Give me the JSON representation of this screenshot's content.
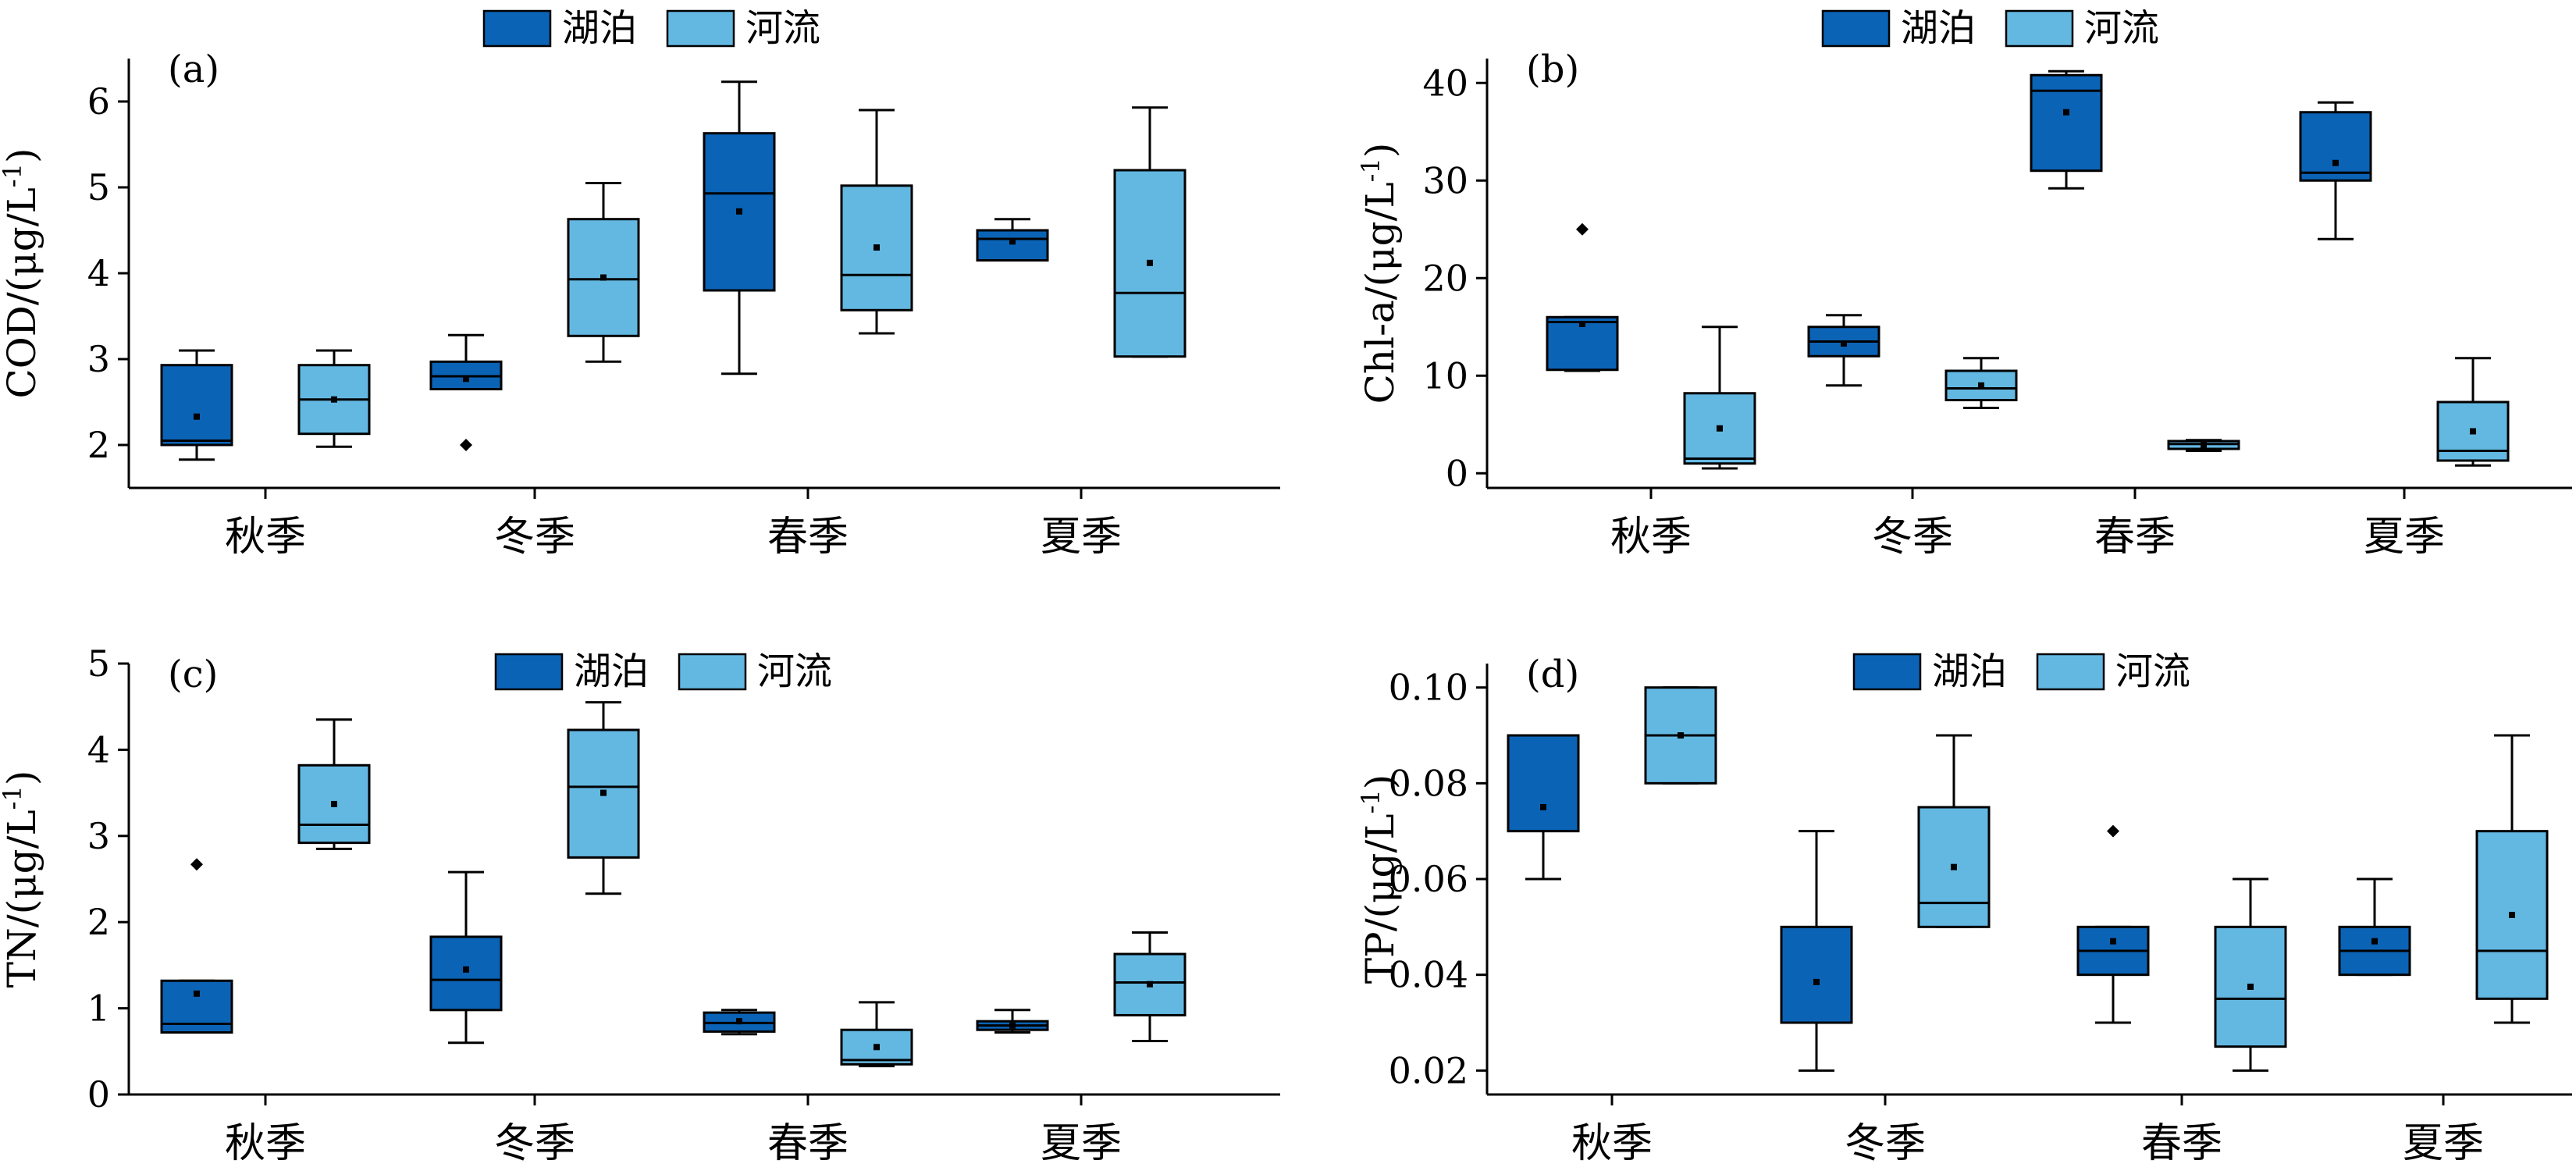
{
  "colors": {
    "lake": "#0b63b6",
    "river": "#63b8e2",
    "stroke": "#000000"
  },
  "chart_data": [
    {
      "type": "box",
      "panel_label": "(a)",
      "ylabel": "COD/(μg/L-1)",
      "ylabel_main": "COD/(μg/L",
      "ylabel_sup": "-1",
      "ylabel_end": ")",
      "categories": [
        "秋季",
        "冬季",
        "春季",
        "夏季"
      ],
      "ylim": [
        1.5,
        6.5
      ],
      "yticks": [
        2,
        3,
        4,
        5,
        6
      ],
      "legend": [
        "湖泊",
        "河流"
      ],
      "series": [
        {
          "name": "湖泊",
          "boxes": [
            {
              "min": 1.83,
              "q1": 2.0,
              "median": 2.05,
              "q3": 2.93,
              "max": 3.1,
              "mean": 2.33,
              "outliers": []
            },
            {
              "min": 2.65,
              "q1": 2.65,
              "median": 2.8,
              "q3": 2.97,
              "max": 3.28,
              "mean": 2.77,
              "outliers": [
                2.0
              ]
            },
            {
              "min": 2.83,
              "q1": 3.8,
              "median": 4.93,
              "q3": 5.63,
              "max": 6.23,
              "mean": 4.72,
              "outliers": []
            },
            {
              "min": 4.15,
              "q1": 4.15,
              "median": 4.4,
              "q3": 4.5,
              "max": 4.63,
              "mean": 4.37,
              "outliers": []
            }
          ]
        },
        {
          "name": "河流",
          "boxes": [
            {
              "min": 1.98,
              "q1": 2.13,
              "median": 2.53,
              "q3": 2.93,
              "max": 3.1,
              "mean": 2.53,
              "outliers": []
            },
            {
              "min": 2.97,
              "q1": 3.27,
              "median": 3.93,
              "q3": 4.63,
              "max": 5.05,
              "mean": 3.95,
              "outliers": []
            },
            {
              "min": 3.3,
              "q1": 3.57,
              "median": 3.98,
              "q3": 5.02,
              "max": 5.9,
              "mean": 4.3,
              "outliers": []
            },
            {
              "min": 3.03,
              "q1": 3.03,
              "median": 3.77,
              "q3": 5.2,
              "max": 5.93,
              "mean": 4.12,
              "outliers": []
            }
          ]
        }
      ]
    },
    {
      "type": "box",
      "panel_label": "(b)",
      "ylabel": "Chl-a/(μg/L-1)",
      "ylabel_main": "Chl-a/(μg/L",
      "ylabel_sup": "-1",
      "ylabel_end": ")",
      "categories": [
        "秋季",
        "冬季",
        "春季",
        "夏季"
      ],
      "ylim": [
        -1.5,
        42.5
      ],
      "yticks": [
        0,
        10,
        20,
        30,
        40
      ],
      "legend": [
        "湖泊",
        "河流"
      ],
      "series": [
        {
          "name": "湖泊",
          "boxes": [
            {
              "min": 10.5,
              "q1": 10.6,
              "median": 15.5,
              "q3": 16.0,
              "max": 16.0,
              "mean": 15.3,
              "outliers": [
                25.0
              ]
            },
            {
              "min": 9.0,
              "q1": 12.0,
              "median": 13.5,
              "q3": 15.0,
              "max": 16.2,
              "mean": 13.3,
              "outliers": []
            },
            {
              "min": 29.2,
              "q1": 31.0,
              "median": 39.2,
              "q3": 40.8,
              "max": 41.2,
              "mean": 37.0,
              "outliers": []
            },
            {
              "min": 24.0,
              "q1": 30.0,
              "median": 30.8,
              "q3": 37.0,
              "max": 38.0,
              "mean": 31.8,
              "outliers": []
            }
          ]
        },
        {
          "name": "河流",
          "boxes": [
            {
              "min": 0.5,
              "q1": 1.0,
              "median": 1.5,
              "q3": 8.2,
              "max": 15.0,
              "mean": 4.6,
              "outliers": []
            },
            {
              "min": 6.7,
              "q1": 7.5,
              "median": 8.7,
              "q3": 10.5,
              "max": 11.8,
              "mean": 9.0,
              "outliers": []
            },
            {
              "min": 2.3,
              "q1": 2.5,
              "median": 3.0,
              "q3": 3.3,
              "max": 3.4,
              "mean": 2.9,
              "outliers": []
            },
            {
              "min": 0.8,
              "q1": 1.3,
              "median": 2.3,
              "q3": 7.3,
              "max": 11.8,
              "mean": 4.3,
              "outliers": []
            }
          ]
        }
      ]
    },
    {
      "type": "box",
      "panel_label": "(c)",
      "ylabel": "TN/(μg/L-1)",
      "ylabel_main": "TN/(μg/L",
      "ylabel_sup": "-1",
      "ylabel_end": ")",
      "categories": [
        "秋季",
        "冬季",
        "春季",
        "夏季"
      ],
      "ylim": [
        0,
        5
      ],
      "yticks": [
        0,
        1,
        2,
        3,
        4,
        5
      ],
      "legend": [
        "湖泊",
        "河流"
      ],
      "series": [
        {
          "name": "湖泊",
          "boxes": [
            {
              "min": 0.72,
              "q1": 0.72,
              "median": 0.82,
              "q3": 1.32,
              "max": 1.32,
              "mean": 1.17,
              "outliers": [
                2.67
              ]
            },
            {
              "min": 0.6,
              "q1": 0.98,
              "median": 1.33,
              "q3": 1.83,
              "max": 2.58,
              "mean": 1.45,
              "outliers": []
            },
            {
              "min": 0.7,
              "q1": 0.73,
              "median": 0.83,
              "q3": 0.95,
              "max": 0.98,
              "mean": 0.85,
              "outliers": []
            },
            {
              "min": 0.72,
              "q1": 0.75,
              "median": 0.8,
              "q3": 0.85,
              "max": 0.98,
              "mean": 0.8,
              "outliers": []
            }
          ]
        },
        {
          "name": "河流",
          "boxes": [
            {
              "min": 2.85,
              "q1": 2.92,
              "median": 3.13,
              "q3": 3.82,
              "max": 4.35,
              "mean": 3.37,
              "outliers": []
            },
            {
              "min": 2.33,
              "q1": 2.75,
              "median": 3.57,
              "q3": 4.23,
              "max": 4.55,
              "mean": 3.5,
              "outliers": []
            },
            {
              "min": 0.33,
              "q1": 0.35,
              "median": 0.4,
              "q3": 0.75,
              "max": 1.07,
              "mean": 0.55,
              "outliers": []
            },
            {
              "min": 0.62,
              "q1": 0.92,
              "median": 1.3,
              "q3": 1.63,
              "max": 1.88,
              "mean": 1.28,
              "outliers": []
            }
          ]
        }
      ]
    },
    {
      "type": "box",
      "panel_label": "(d)",
      "ylabel": "TP/(μg/L-1)",
      "ylabel_main": "TP/(μg/L",
      "ylabel_sup": "-1",
      "ylabel_end": ")",
      "categories": [
        "秋季",
        "冬季",
        "春季",
        "夏季"
      ],
      "ylim": [
        0.015,
        0.105
      ],
      "yticks": [
        0.02,
        0.04,
        0.06,
        0.08,
        0.1
      ],
      "ytick_labels": [
        "0.02",
        "0.04",
        "0.06",
        "0.08",
        "0.10"
      ],
      "legend": [
        "湖泊",
        "河流"
      ],
      "series": [
        {
          "name": "湖泊",
          "boxes": [
            {
              "min": 0.06,
              "q1": 0.07,
              "median": 0.09,
              "q3": 0.09,
              "max": 0.09,
              "mean": 0.075,
              "outliers": []
            },
            {
              "min": 0.02,
              "q1": 0.03,
              "median": 0.03,
              "q3": 0.05,
              "max": 0.07,
              "mean": 0.0385,
              "outliers": []
            },
            {
              "min": 0.03,
              "q1": 0.04,
              "median": 0.045,
              "q3": 0.05,
              "max": 0.05,
              "mean": 0.047,
              "outliers": [
                0.07
              ]
            },
            {
              "min": 0.04,
              "q1": 0.04,
              "median": 0.045,
              "q3": 0.05,
              "max": 0.06,
              "mean": 0.047,
              "outliers": []
            }
          ]
        },
        {
          "name": "河流",
          "boxes": [
            {
              "min": 0.08,
              "q1": 0.08,
              "median": 0.09,
              "q3": 0.1,
              "max": 0.1,
              "mean": 0.09,
              "outliers": []
            },
            {
              "min": 0.05,
              "q1": 0.05,
              "median": 0.055,
              "q3": 0.075,
              "max": 0.09,
              "mean": 0.0625,
              "outliers": []
            },
            {
              "min": 0.02,
              "q1": 0.025,
              "median": 0.035,
              "q3": 0.05,
              "max": 0.06,
              "mean": 0.0375,
              "outliers": []
            },
            {
              "min": 0.03,
              "q1": 0.035,
              "median": 0.045,
              "q3": 0.07,
              "max": 0.09,
              "mean": 0.0525,
              "outliers": []
            }
          ]
        }
      ]
    }
  ]
}
